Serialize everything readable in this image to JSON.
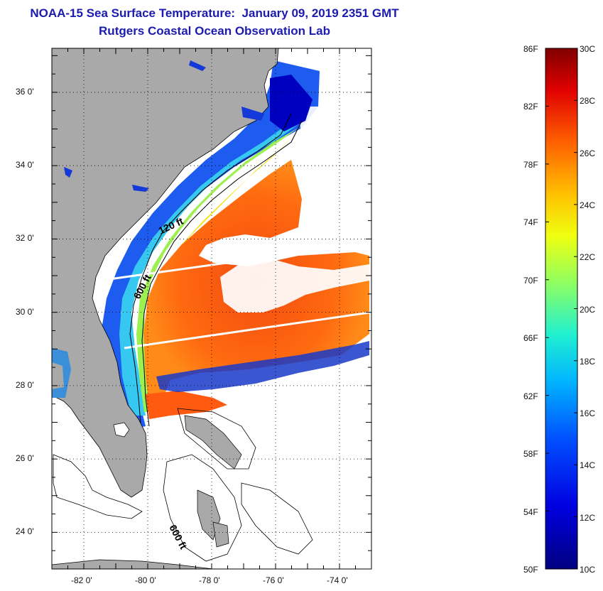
{
  "title": {
    "line1": "NOAA-15 Sea Surface Temperature:  January 09, 2019 2351 GMT",
    "line2": "Rutgers Coastal Ocean Observation Lab"
  },
  "map": {
    "lat_labels": [
      "36 0'",
      "34 0'",
      "32 0'",
      "30 0'",
      "28 0'",
      "26 0'",
      "24 0'"
    ],
    "lon_labels": [
      "-82 0'",
      "-80 0'",
      "-78 0'",
      "-76 0'",
      "-74 0'"
    ],
    "lat_range": [
      23,
      37.2
    ],
    "lon_range": [
      -83,
      -73
    ],
    "isobath_labels": [
      "120 ft",
      "600 ft",
      "600 ft"
    ],
    "colors": {
      "land": "#a9a9a9",
      "ocean_blank": "#ffffff",
      "contour": "#000000"
    }
  },
  "colorbar": {
    "fahrenheit_labels": [
      "86F",
      "82F",
      "78F",
      "74F",
      "70F",
      "66F",
      "62F",
      "58F",
      "54F",
      "50F"
    ],
    "celsius_labels": [
      "30C",
      "28C",
      "26C",
      "24C",
      "22C",
      "20C",
      "18C",
      "16C",
      "14C",
      "12C",
      "10C"
    ],
    "range_celsius": [
      10,
      30
    ],
    "range_fahrenheit": [
      50,
      86
    ]
  }
}
